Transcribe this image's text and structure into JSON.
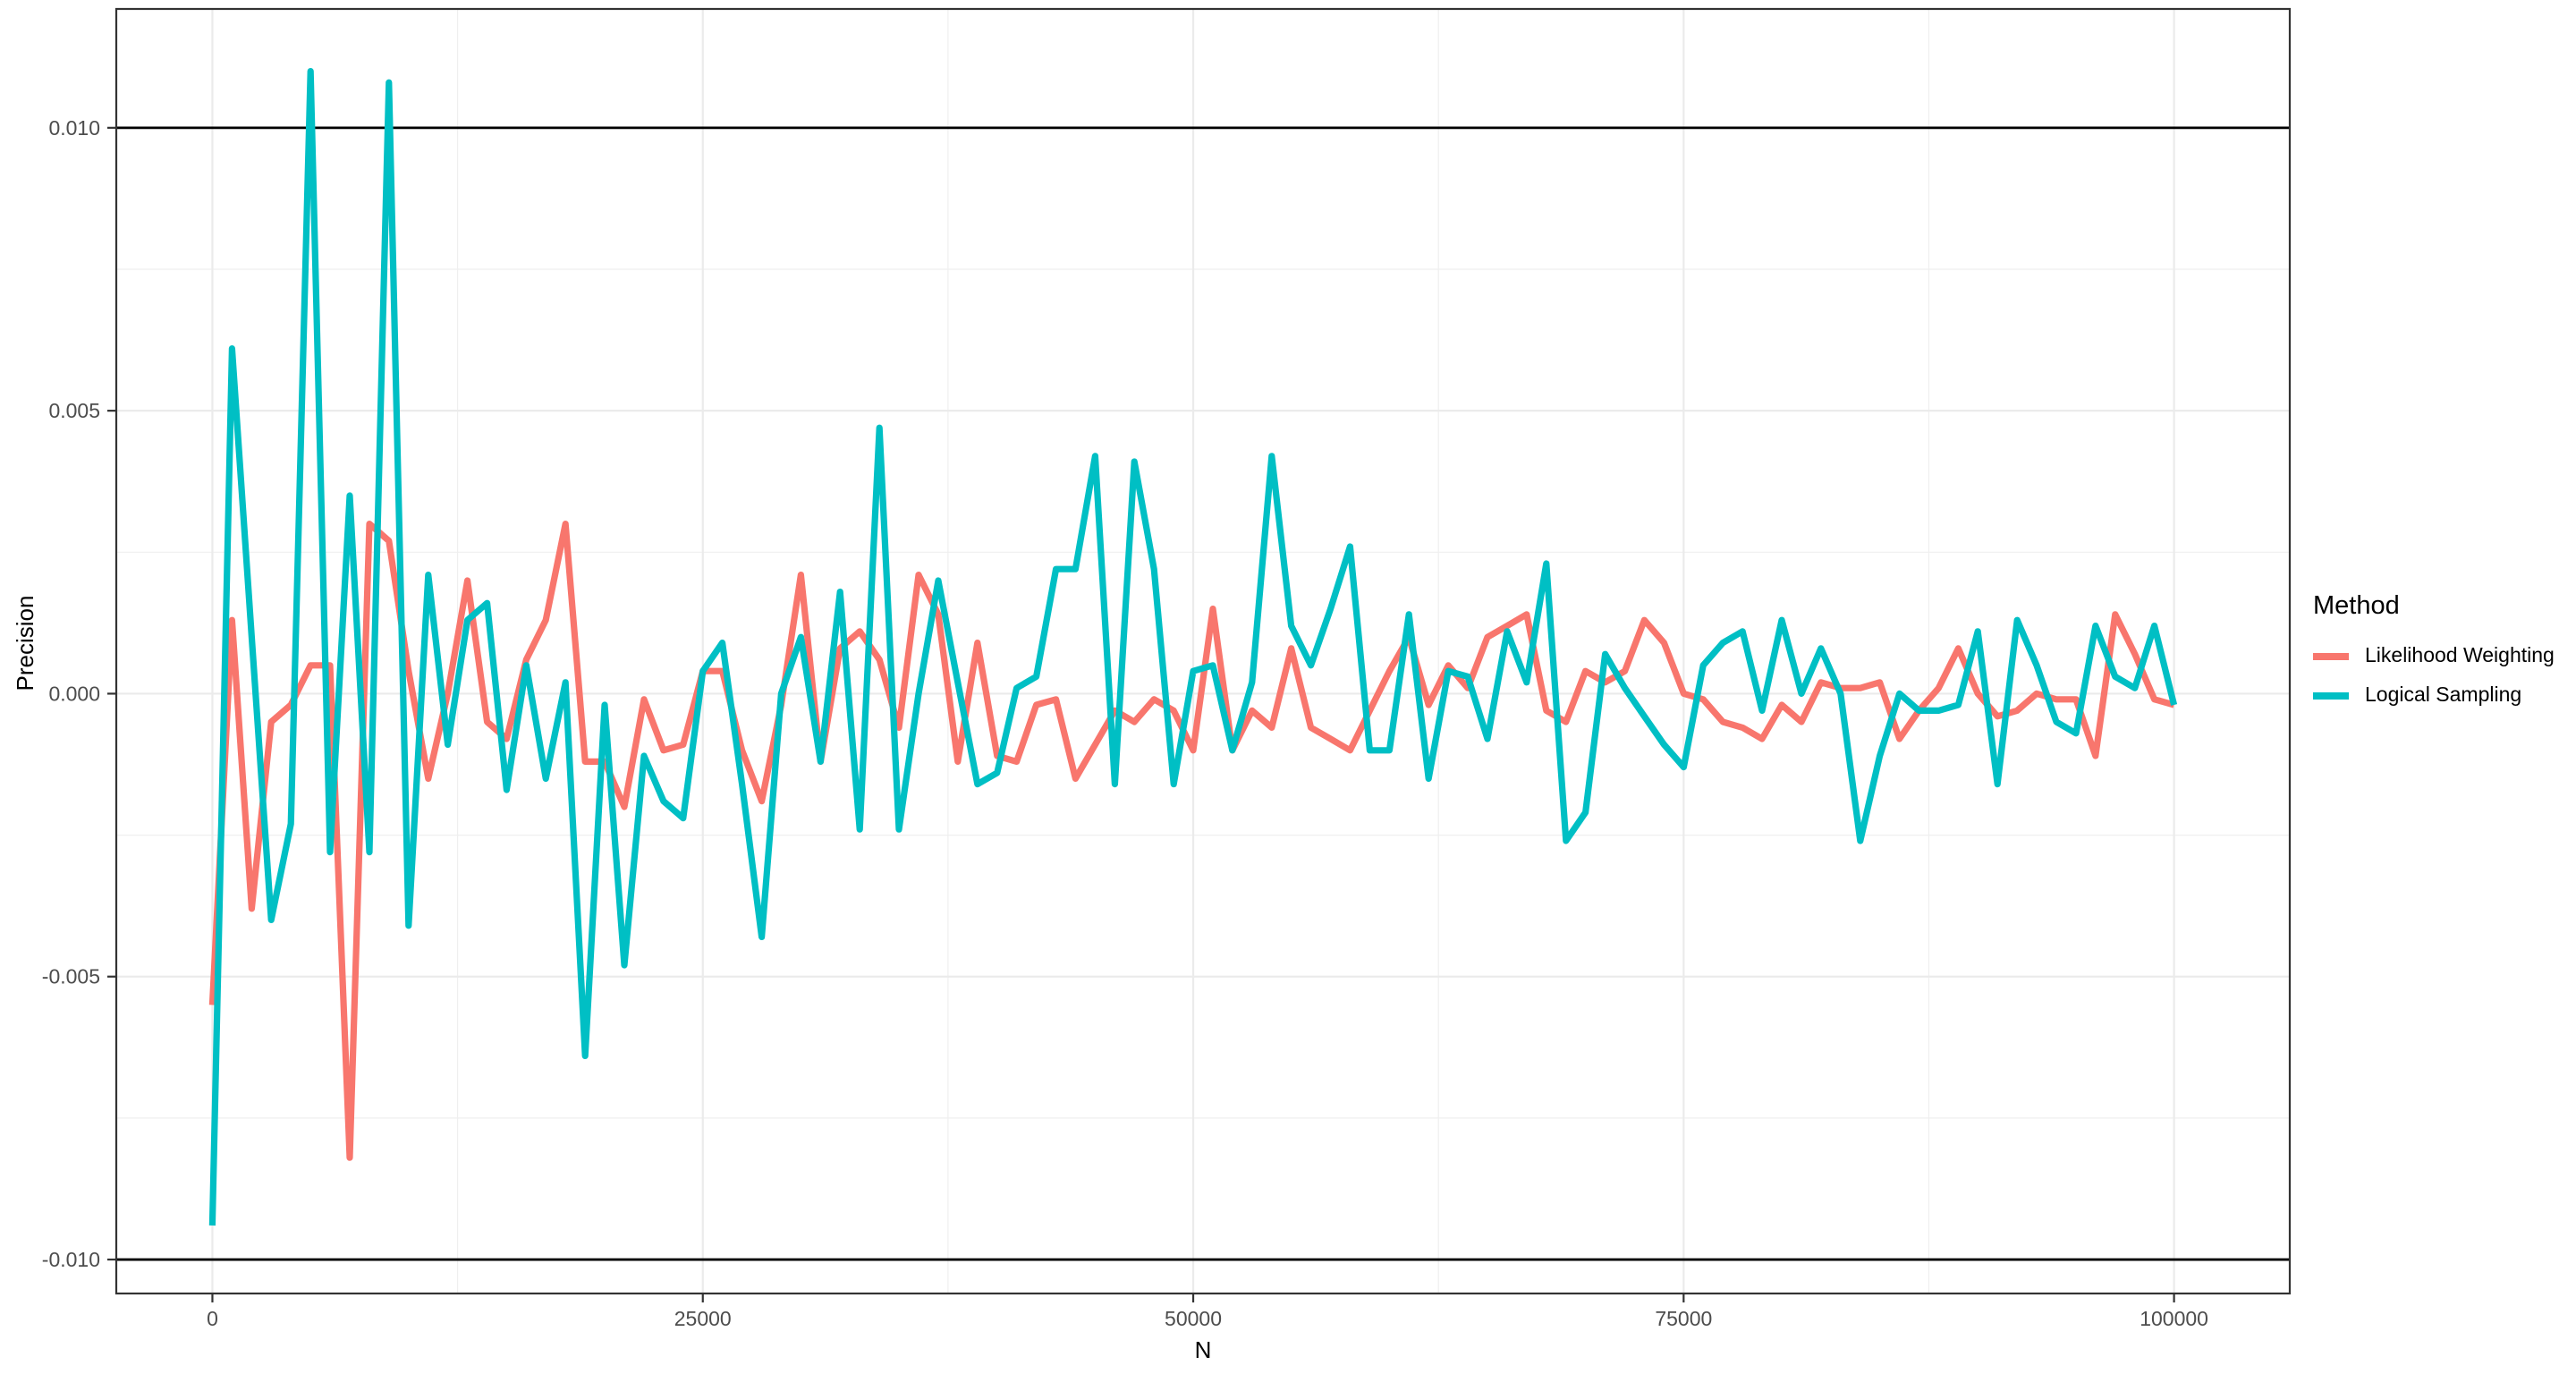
{
  "chart": {
    "y_axis": {
      "title": "Precision",
      "tick_labels": [
        "0.010",
        "0.005",
        "0.000",
        "-0.005",
        "-0.010"
      ],
      "tick_values": [
        0.01,
        0.005,
        0.0,
        -0.005,
        -0.01
      ],
      "minor_values": [
        0.0075,
        0.0025,
        -0.0025,
        -0.0075
      ],
      "range": [
        -0.0106,
        0.0121
      ]
    },
    "x_axis": {
      "title": "N",
      "tick_labels": [
        "0",
        "25000",
        "50000",
        "75000",
        "100000"
      ],
      "tick_values": [
        0,
        25000,
        50000,
        75000,
        100000
      ],
      "minor_values": [
        12500,
        37500,
        62500,
        87500
      ],
      "range": [
        -4900,
        105900
      ]
    },
    "legend": {
      "title": "Method",
      "items": [
        {
          "label": "Likelihood Weighting",
          "color": "#F8766D"
        },
        {
          "label": "Logical Sampling",
          "color": "#00BFC4"
        }
      ]
    },
    "reference_lines": {
      "values": [
        0.01,
        -0.01
      ],
      "color": "#000000"
    },
    "colors": {
      "background": "#FFFFFF",
      "grid_major": "#EBEBEB",
      "grid_minor": "#EFEFEF",
      "panel_border": "#333333",
      "tick_mark": "#333333",
      "tick_text": "#4D4D4D",
      "axis_title": "#000000"
    }
  },
  "chart_data": {
    "type": "line",
    "title": "",
    "xlabel": "N",
    "ylabel": "Precision",
    "xlim": [
      -4900,
      105900
    ],
    "ylim": [
      -0.0106,
      0.0121
    ],
    "grid": "on",
    "legend_position": "right",
    "hlines": [
      0.01,
      -0.01
    ],
    "x": [
      0,
      1000,
      2000,
      3000,
      4000,
      5000,
      6000,
      7000,
      8000,
      9000,
      10000,
      11000,
      12000,
      13000,
      14000,
      15000,
      16000,
      17000,
      18000,
      19000,
      20000,
      21000,
      22000,
      23000,
      24000,
      25000,
      26000,
      27000,
      28000,
      29000,
      30000,
      31000,
      32000,
      33000,
      34000,
      35000,
      36000,
      37000,
      38000,
      39000,
      40000,
      41000,
      42000,
      43000,
      44000,
      45000,
      46000,
      47000,
      48000,
      49000,
      50000,
      51000,
      52000,
      53000,
      54000,
      55000,
      56000,
      57000,
      58000,
      59000,
      60000,
      61000,
      62000,
      63000,
      64000,
      65000,
      66000,
      67000,
      68000,
      69000,
      70000,
      71000,
      72000,
      73000,
      74000,
      75000,
      76000,
      77000,
      78000,
      79000,
      80000,
      81000,
      82000,
      83000,
      84000,
      85000,
      86000,
      87000,
      88000,
      89000,
      90000,
      91000,
      92000,
      93000,
      94000,
      95000,
      96000,
      97000,
      98000,
      99000,
      100000
    ],
    "series": [
      {
        "name": "Likelihood Weighting",
        "color": "#F8766D",
        "values": [
          -0.0055,
          0.0013,
          -0.0038,
          -0.0005,
          -0.0002,
          0.0005,
          0.0005,
          -0.0082,
          0.003,
          0.0027,
          0.0004,
          -0.0015,
          0.0,
          0.002,
          -0.0005,
          -0.0008,
          0.0006,
          0.0013,
          0.003,
          -0.0012,
          -0.0012,
          -0.002,
          -0.0001,
          -0.001,
          -0.0009,
          0.0004,
          0.0004,
          -0.001,
          -0.0019,
          -0.0002,
          0.0021,
          -0.0012,
          0.0008,
          0.0011,
          0.0006,
          -0.0006,
          0.0021,
          0.0014,
          -0.0012,
          0.0009,
          -0.0011,
          -0.0012,
          -0.0002,
          -0.0001,
          -0.0015,
          -0.0009,
          -0.0003,
          -0.0005,
          -0.0001,
          -0.0003,
          -0.001,
          0.0015,
          -0.001,
          -0.0003,
          -0.0006,
          0.0008,
          -0.0006,
          -0.0008,
          -0.001,
          -0.0003,
          0.0004,
          0.001,
          -0.0002,
          0.0005,
          0.0001,
          0.001,
          0.0012,
          0.0014,
          -0.0003,
          -0.0005,
          0.0004,
          0.0002,
          0.0004,
          0.0013,
          0.0009,
          0.0,
          -0.0001,
          -0.0005,
          -0.0006,
          -0.0008,
          -0.0002,
          -0.0005,
          0.0002,
          0.0001,
          0.0001,
          0.0002,
          -0.0008,
          -0.0003,
          0.0001,
          0.0008,
          0.0,
          -0.0004,
          -0.0003,
          0.0,
          -0.0001,
          -0.0001,
          -0.0011,
          0.0014,
          0.0007,
          -0.0001,
          -0.0002
        ]
      },
      {
        "name": "Logical Sampling",
        "color": "#00BFC4",
        "values": [
          -0.0094,
          0.0061,
          0.001,
          -0.004,
          -0.0023,
          0.011,
          -0.0028,
          0.0035,
          -0.0028,
          0.0108,
          -0.0041,
          0.0021,
          -0.0009,
          0.0013,
          0.0016,
          -0.0017,
          0.0005,
          -0.0015,
          0.0002,
          -0.0064,
          -0.0002,
          -0.0048,
          -0.0011,
          -0.0019,
          -0.0022,
          0.0004,
          0.0009,
          -0.0016,
          -0.0043,
          0.0,
          0.001,
          -0.0012,
          0.0018,
          -0.0024,
          0.0047,
          -0.0024,
          0.0,
          0.002,
          0.0002,
          -0.0016,
          -0.0014,
          0.0001,
          0.0003,
          0.0022,
          0.0022,
          0.0042,
          -0.0016,
          0.0041,
          0.0022,
          -0.0016,
          0.0004,
          0.0005,
          -0.001,
          0.0002,
          0.0042,
          0.0012,
          0.0005,
          0.0015,
          0.0026,
          -0.001,
          -0.001,
          0.0014,
          -0.0015,
          0.0004,
          0.0003,
          -0.0008,
          0.0011,
          0.0002,
          0.0023,
          -0.0026,
          -0.0021,
          0.0007,
          0.0001,
          -0.0004,
          -0.0009,
          -0.0013,
          0.0005,
          0.0009,
          0.0011,
          -0.0003,
          0.0013,
          0.0,
          0.0008,
          0.0,
          -0.0026,
          -0.0011,
          0.0,
          -0.0003,
          -0.0003,
          -0.0002,
          0.0011,
          -0.0016,
          0.0013,
          0.0005,
          -0.0005,
          -0.0007,
          0.0012,
          0.0003,
          0.0001,
          0.0012,
          -0.0002
        ]
      }
    ]
  }
}
